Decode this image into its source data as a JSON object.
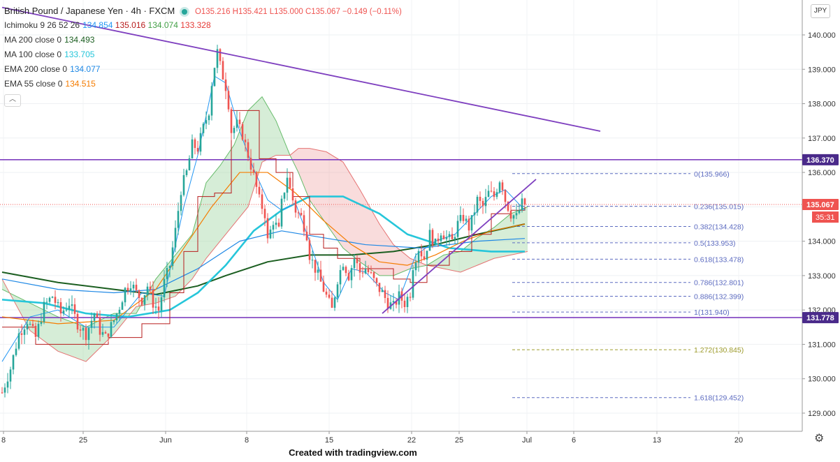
{
  "header": {
    "title": "British Pound / Japanese Yen · 4h · FXCM",
    "ohlc": [
      {
        "k": "O",
        "v": "135.216"
      },
      {
        "k": "H",
        "v": "135.421"
      },
      {
        "k": "L",
        "v": "135.000"
      },
      {
        "k": "C",
        "v": "135.067"
      }
    ],
    "change": "−0.149 (−0.11%)"
  },
  "indicators": [
    {
      "label": "Ichimoku 9 26 52 26",
      "values": [
        {
          "v": "134.854",
          "color": "#2196f3"
        },
        {
          "v": "135.016",
          "color": "#b71c1c"
        },
        {
          "v": "134.074",
          "color": "#43a047"
        },
        {
          "v": "133.328",
          "color": "#e53935"
        }
      ]
    },
    {
      "label": "MA 200 close 0",
      "values": [
        {
          "v": "134.493",
          "color": "#1b5e20"
        }
      ]
    },
    {
      "label": "MA 100 close 0",
      "values": [
        {
          "v": "133.705",
          "color": "#26c6da"
        }
      ]
    },
    {
      "label": "EMA 200 close 0",
      "values": [
        {
          "v": "134.077",
          "color": "#1e88e5"
        }
      ]
    },
    {
      "label": "EMA 55 close 0",
      "values": [
        {
          "v": "134.515",
          "color": "#f57c00"
        }
      ]
    }
  ],
  "collapse_icon": "chevron-up-icon",
  "currency_badge": "JPY",
  "footer": "Created with tradingview.com",
  "settings_icon": "gear-icon",
  "colors": {
    "up": "#26a69a",
    "down": "#ef5350",
    "trend": "#7e3fbf",
    "fib": "#5c6bc0",
    "fib_ext": "#9c9a2a",
    "cloud_green": "#a5d6a7",
    "cloud_red": "#ef9a9a"
  },
  "chart_data": {
    "type": "candlestick",
    "symbol": "GBPJPY",
    "timeframe": "4h",
    "x_ticks": [
      "8",
      "25",
      "Jun",
      "8",
      "15",
      "22",
      "25",
      "Jul",
      "6",
      "13",
      "20"
    ],
    "y_ticks": [
      "140.000",
      "139.000",
      "138.000",
      "137.000",
      "136.000",
      "135.000",
      "134.000",
      "133.000",
      "132.000",
      "131.000",
      "130.000",
      "129.000"
    ],
    "ylim": [
      128.6,
      140.4
    ],
    "last_price": {
      "value": 135.067,
      "label": "135.067",
      "countdown": "35:31"
    },
    "horizontal_levels": [
      {
        "value": 136.37,
        "label": "136.370"
      },
      {
        "value": 131.778,
        "label": "131.778"
      }
    ],
    "fibonacci": [
      {
        "ratio": "0",
        "value": 135.966,
        "label": "0(135.966)"
      },
      {
        "ratio": "0.236",
        "value": 135.015,
        "label": "0.236(135.015)"
      },
      {
        "ratio": "0.382",
        "value": 134.428,
        "label": "0.382(134.428)"
      },
      {
        "ratio": "0.5",
        "value": 133.953,
        "label": "0.5(133.953)"
      },
      {
        "ratio": "0.618",
        "value": 133.478,
        "label": "0.618(133.478)"
      },
      {
        "ratio": "0.786",
        "value": 132.801,
        "label": "0.786(132.801)"
      },
      {
        "ratio": "0.886",
        "value": 132.399,
        "label": "0.886(132.399)"
      },
      {
        "ratio": "1",
        "value": 131.94,
        "label": "1(131.940)"
      },
      {
        "ratio": "1.272",
        "value": 130.845,
        "label": "1.272(130.845)"
      },
      {
        "ratio": "1.618",
        "value": 129.452,
        "label": "1.618(129.452)"
      }
    ],
    "price_path": [
      [
        0,
        129.6
      ],
      [
        3,
        130.3
      ],
      [
        6,
        131.3
      ],
      [
        9,
        131.7
      ],
      [
        12,
        131.2
      ],
      [
        15,
        132.1
      ],
      [
        18,
        132.4
      ],
      [
        21,
        131.9
      ],
      [
        24,
        132.2
      ],
      [
        27,
        131.6
      ],
      [
        30,
        131.3
      ],
      [
        33,
        131.9
      ],
      [
        35,
        131.4
      ],
      [
        37,
        131.2
      ],
      [
        40,
        131.7
      ],
      [
        42,
        132.1
      ],
      [
        44,
        132.6
      ],
      [
        46,
        132.8
      ],
      [
        48,
        132.5
      ],
      [
        50,
        132.3
      ],
      [
        52,
        132.7
      ],
      [
        54,
        132.2
      ],
      [
        56,
        132.0
      ],
      [
        58,
        132.8
      ],
      [
        60,
        133.3
      ],
      [
        62,
        134.3
      ],
      [
        64,
        135.5
      ],
      [
        66,
        136.0
      ],
      [
        68,
        136.8
      ],
      [
        70,
        136.7
      ],
      [
        72,
        137.3
      ],
      [
        74,
        137.8
      ],
      [
        75,
        138.6
      ],
      [
        76,
        139.1
      ],
      [
        77,
        139.5
      ],
      [
        78,
        139.1
      ],
      [
        80,
        138.5
      ],
      [
        81,
        138.0
      ],
      [
        82,
        137.2
      ],
      [
        84,
        137.4
      ],
      [
        86,
        137.1
      ],
      [
        88,
        136.5
      ],
      [
        90,
        135.9
      ],
      [
        92,
        135.2
      ],
      [
        94,
        134.8
      ],
      [
        95,
        134.0
      ],
      [
        97,
        134.6
      ],
      [
        99,
        134.3
      ],
      [
        100,
        135.1
      ],
      [
        102,
        135.9
      ],
      [
        103,
        135.5
      ],
      [
        105,
        134.9
      ],
      [
        107,
        134.7
      ],
      [
        109,
        134.2
      ],
      [
        110,
        133.6
      ],
      [
        112,
        133.2
      ],
      [
        114,
        132.8
      ],
      [
        116,
        132.4
      ],
      [
        118,
        132.0
      ],
      [
        120,
        132.9
      ],
      [
        122,
        133.4
      ],
      [
        124,
        133.0
      ],
      [
        126,
        133.5
      ],
      [
        128,
        133.1
      ],
      [
        130,
        133.2
      ],
      [
        132,
        133.0
      ],
      [
        134,
        132.7
      ],
      [
        136,
        132.5
      ],
      [
        138,
        132.2
      ],
      [
        140,
        132.1
      ],
      [
        142,
        132.4
      ],
      [
        144,
        132.2
      ],
      [
        146,
        132.5
      ],
      [
        147,
        133.3
      ],
      [
        149,
        133.8
      ],
      [
        151,
        133.5
      ],
      [
        153,
        134.2
      ],
      [
        155,
        133.9
      ],
      [
        157,
        134.3
      ],
      [
        159,
        134.1
      ],
      [
        161,
        134.0
      ],
      [
        163,
        134.5
      ],
      [
        165,
        134.7
      ],
      [
        167,
        134.4
      ],
      [
        168,
        134.6
      ],
      [
        170,
        135.2
      ],
      [
        172,
        135.0
      ],
      [
        174,
        135.4
      ],
      [
        176,
        135.3
      ],
      [
        178,
        135.8
      ],
      [
        179,
        135.6
      ],
      [
        180,
        135.2
      ],
      [
        182,
        134.8
      ],
      [
        184,
        134.7
      ],
      [
        186,
        135.1
      ],
      [
        187,
        135.07
      ]
    ],
    "moving_averages": [
      {
        "name": "MA 200",
        "color": "#1b5e20",
        "points": [
          [
            0,
            133.1
          ],
          [
            20,
            132.8
          ],
          [
            40,
            132.6
          ],
          [
            55,
            132.45
          ],
          [
            70,
            132.7
          ],
          [
            80,
            133.0
          ],
          [
            95,
            133.4
          ],
          [
            110,
            133.6
          ],
          [
            125,
            133.6
          ],
          [
            140,
            133.7
          ],
          [
            155,
            133.9
          ],
          [
            170,
            134.2
          ],
          [
            187,
            134.5
          ]
        ]
      },
      {
        "name": "MA 100",
        "color": "#26c6da",
        "points": [
          [
            0,
            132.3
          ],
          [
            15,
            132.2
          ],
          [
            30,
            131.9
          ],
          [
            45,
            131.8
          ],
          [
            60,
            132.0
          ],
          [
            70,
            132.5
          ],
          [
            80,
            133.3
          ],
          [
            90,
            134.3
          ],
          [
            100,
            134.9
          ],
          [
            110,
            135.3
          ],
          [
            122,
            135.3
          ],
          [
            135,
            134.8
          ],
          [
            145,
            134.2
          ],
          [
            160,
            133.8
          ],
          [
            175,
            133.7
          ],
          [
            187,
            133.7
          ]
        ]
      },
      {
        "name": "EMA 200",
        "color": "#1e88e5",
        "points": [
          [
            0,
            132.9
          ],
          [
            20,
            132.6
          ],
          [
            40,
            132.5
          ],
          [
            55,
            132.6
          ],
          [
            70,
            133.2
          ],
          [
            85,
            134.0
          ],
          [
            100,
            134.3
          ],
          [
            115,
            134.1
          ],
          [
            130,
            133.9
          ],
          [
            150,
            133.8
          ],
          [
            170,
            134.0
          ],
          [
            187,
            134.08
          ]
        ]
      },
      {
        "name": "EMA 55",
        "color": "#f57c00",
        "points": [
          [
            0,
            131.8
          ],
          [
            20,
            131.6
          ],
          [
            40,
            131.7
          ],
          [
            55,
            132.6
          ],
          [
            65,
            133.8
          ],
          [
            75,
            135.0
          ],
          [
            85,
            136.0
          ],
          [
            95,
            136.0
          ],
          [
            105,
            135.4
          ],
          [
            115,
            134.6
          ],
          [
            125,
            133.9
          ],
          [
            135,
            133.4
          ],
          [
            145,
            133.3
          ],
          [
            155,
            133.6
          ],
          [
            165,
            134.0
          ],
          [
            175,
            134.3
          ],
          [
            187,
            134.5
          ]
        ]
      }
    ],
    "ichimoku": {
      "tenkan_color": "#2196f3",
      "kijun_color": "#b71c1c",
      "tenkan": [
        [
          0,
          130.5
        ],
        [
          10,
          131.8
        ],
        [
          20,
          132.0
        ],
        [
          30,
          131.5
        ],
        [
          40,
          131.5
        ],
        [
          50,
          132.5
        ],
        [
          58,
          132.4
        ],
        [
          65,
          135.0
        ],
        [
          70,
          136.5
        ],
        [
          76,
          138.8
        ],
        [
          80,
          138.6
        ],
        [
          85,
          137.2
        ],
        [
          90,
          136.1
        ],
        [
          95,
          135.2
        ],
        [
          100,
          134.9
        ],
        [
          105,
          135.1
        ],
        [
          110,
          134.0
        ],
        [
          115,
          132.8
        ],
        [
          120,
          132.3
        ],
        [
          125,
          133.2
        ],
        [
          130,
          133.1
        ],
        [
          137,
          132.5
        ],
        [
          142,
          132.3
        ],
        [
          148,
          133.6
        ],
        [
          155,
          134.0
        ],
        [
          162,
          134.2
        ],
        [
          168,
          134.7
        ],
        [
          175,
          135.3
        ],
        [
          180,
          135.5
        ],
        [
          187,
          134.9
        ]
      ],
      "kijun": [
        [
          0,
          131.5
        ],
        [
          12,
          131.0
        ],
        [
          25,
          131.0
        ],
        [
          38,
          131.2
        ],
        [
          50,
          131.6
        ],
        [
          60,
          132.5
        ],
        [
          65,
          133.7
        ],
        [
          70,
          135.3
        ],
        [
          76,
          135.4
        ],
        [
          82,
          137.8
        ],
        [
          88,
          137.8
        ],
        [
          92,
          136.4
        ],
        [
          98,
          136.0
        ],
        [
          104,
          135.3
        ],
        [
          110,
          134.2
        ],
        [
          115,
          133.8
        ],
        [
          120,
          133.5
        ],
        [
          128,
          133.2
        ],
        [
          135,
          133.2
        ],
        [
          140,
          132.9
        ],
        [
          146,
          132.8
        ],
        [
          152,
          133.3
        ],
        [
          160,
          133.7
        ],
        [
          168,
          134.2
        ],
        [
          175,
          134.8
        ],
        [
          182,
          134.9
        ],
        [
          187,
          135.0
        ]
      ],
      "cloud": [
        [
          0,
          132.6,
          132.9
        ],
        [
          10,
          132.2,
          131.4
        ],
        [
          20,
          131.8,
          130.8
        ],
        [
          30,
          131.5,
          130.5
        ],
        [
          40,
          131.9,
          131.3
        ],
        [
          48,
          131.9,
          132.1
        ],
        [
          55,
          132.9,
          132.2
        ],
        [
          62,
          133.6,
          132.4
        ],
        [
          68,
          134.2,
          132.9
        ],
        [
          73,
          135.7,
          133.5
        ],
        [
          78,
          136.2,
          134.0
        ],
        [
          83,
          136.8,
          134.5
        ],
        [
          88,
          137.8,
          135.0
        ],
        [
          93,
          138.2,
          136.3
        ],
        [
          98,
          137.5,
          136.5
        ],
        [
          103,
          136.5,
          136.5
        ],
        [
          106,
          136.0,
          136.7
        ],
        [
          110,
          135.2,
          136.7
        ],
        [
          116,
          134.5,
          136.6
        ],
        [
          122,
          133.8,
          136.3
        ],
        [
          128,
          133.4,
          135.5
        ],
        [
          135,
          133.0,
          134.5
        ],
        [
          140,
          133.0,
          133.9
        ],
        [
          146,
          133.2,
          133.5
        ],
        [
          152,
          133.3,
          133.3
        ],
        [
          158,
          133.6,
          133.2
        ],
        [
          164,
          133.7,
          133.1
        ],
        [
          170,
          134.1,
          133.3
        ],
        [
          176,
          134.4,
          133.5
        ],
        [
          182,
          134.8,
          133.6
        ],
        [
          188,
          135.0,
          133.7
        ]
      ]
    },
    "trendlines": [
      {
        "from": [
          0,
          140.8
        ],
        "to": [
          214,
          137.2
        ]
      },
      {
        "from": [
          136,
          131.9
        ],
        "to": [
          191,
          135.8
        ]
      }
    ]
  }
}
